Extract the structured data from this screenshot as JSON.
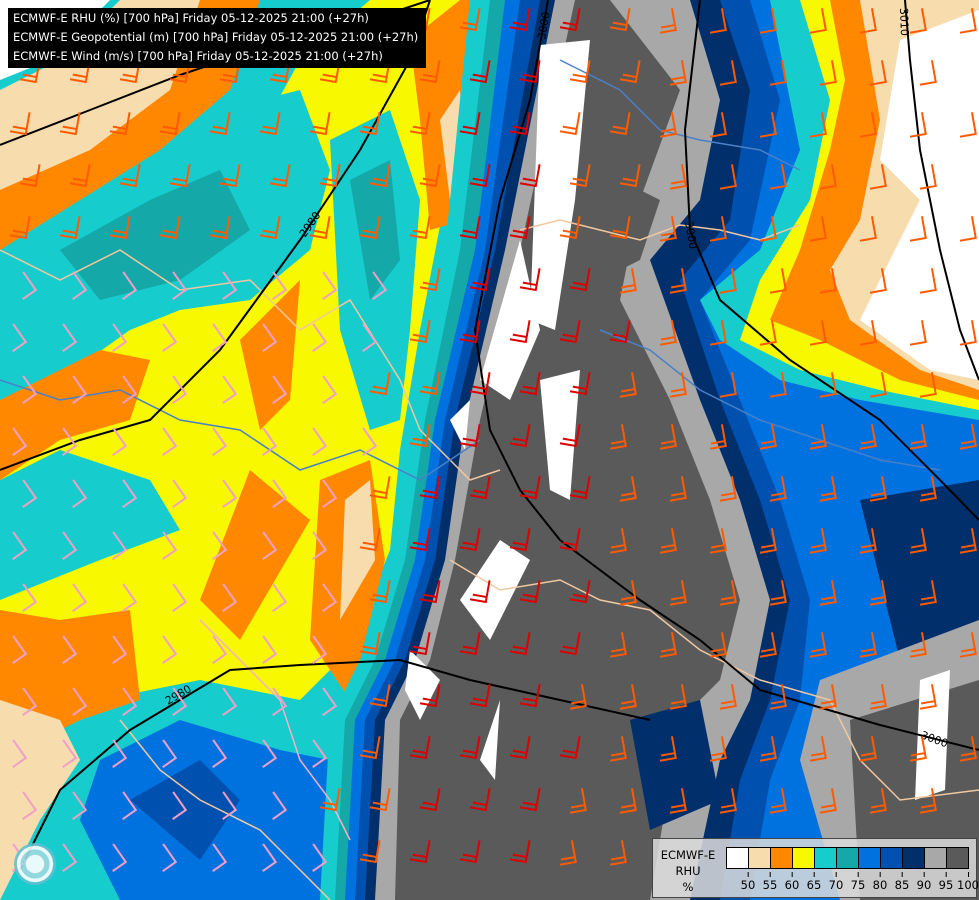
{
  "header": {
    "lines": [
      "ECMWF-E RHU (%) [700 hPa] Friday 05-12-2025 21:00 (+27h)",
      "ECMWF-E Geopotential (m) [700 hPa] Friday 05-12-2025 21:00 (+27h)",
      "ECMWF-E Wind (m/s) [700 hPa] Friday 05-12-2025 21:00 (+27h)"
    ]
  },
  "contour_labels": [
    "2980",
    "2980",
    "3000",
    "3000",
    "3000",
    "3010"
  ],
  "legend": {
    "title_line1": "ECMWF-E",
    "title_line2": "RHU",
    "unit": "%",
    "colors": [
      "#ffffff",
      "#f7dcae",
      "#ff8800",
      "#f8f800",
      "#17cccc",
      "#14a8a8",
      "#0072e0",
      "#0050b0",
      "#002f6c",
      "#a8a8a8",
      "#5a5a5a"
    ],
    "ticks": [
      "50",
      "55",
      "60",
      "65",
      "70",
      "75",
      "80",
      "85",
      "90",
      "95",
      "100"
    ]
  },
  "wind_barb_colors": {
    "weak": "#f0a0c8",
    "moderate": "#ff5a00",
    "strong": "#dd0000"
  },
  "logo": "forecast-provider-logo"
}
